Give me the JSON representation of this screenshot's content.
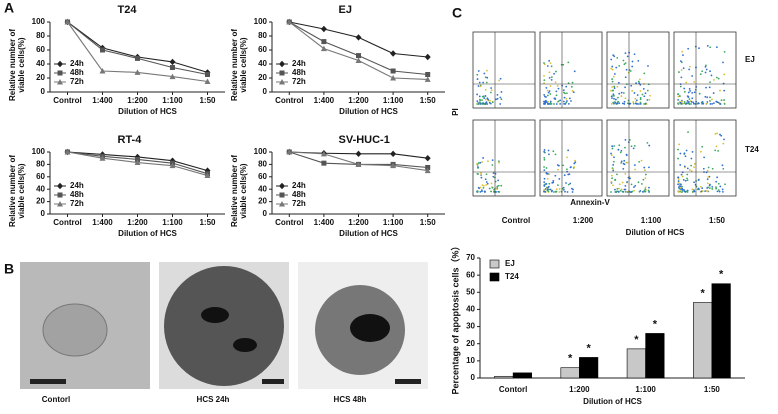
{
  "panels": [
    "A",
    "B",
    "C"
  ],
  "micrographs": {
    "labels": [
      "Contorl",
      "HCS 24h",
      "HCS 48h"
    ]
  },
  "flow": {
    "y_label": "PI",
    "x_label": "Annexin-V",
    "rows": [
      "EJ",
      "T24"
    ],
    "columns": [
      "Control",
      "1:200",
      "1:100",
      "1:50"
    ],
    "columns_title": "Dilution of HCS"
  },
  "chart_data": [
    {
      "type": "line",
      "title": "T24",
      "x_label": "Dilution of HCS",
      "y_label": "Relative number of viable cells(%)",
      "categories": [
        "Control",
        "1:400",
        "1:200",
        "1:100",
        "1:50"
      ],
      "ylim": [
        0,
        100
      ],
      "yticks": [
        0,
        20,
        40,
        60,
        80,
        100
      ],
      "series": [
        {
          "name": "24h",
          "color": "#222",
          "marker": "diamond",
          "values": [
            100,
            63,
            50,
            43,
            28
          ]
        },
        {
          "name": "48h",
          "color": "#555",
          "marker": "square",
          "values": [
            100,
            60,
            48,
            35,
            25
          ]
        },
        {
          "name": "72h",
          "color": "#777",
          "marker": "triangle",
          "values": [
            100,
            30,
            28,
            22,
            15
          ]
        }
      ]
    },
    {
      "type": "line",
      "title": "EJ",
      "x_label": "Dilution of HCS",
      "y_label": "Relative number of viable cells(%)",
      "categories": [
        "Control",
        "1:400",
        "1:200",
        "1:100",
        "1:50"
      ],
      "ylim": [
        0,
        100
      ],
      "yticks": [
        0,
        20,
        40,
        60,
        80,
        100
      ],
      "series": [
        {
          "name": "24h",
          "color": "#222",
          "marker": "diamond",
          "values": [
            100,
            90,
            78,
            55,
            50
          ]
        },
        {
          "name": "48h",
          "color": "#555",
          "marker": "square",
          "values": [
            100,
            72,
            52,
            30,
            25
          ]
        },
        {
          "name": "72h",
          "color": "#777",
          "marker": "triangle",
          "values": [
            100,
            62,
            45,
            20,
            18
          ]
        }
      ]
    },
    {
      "type": "line",
      "title": "RT-4",
      "x_label": "Dilution of HCS",
      "y_label": "Relative number of viable cells(%)",
      "categories": [
        "Control",
        "1:400",
        "1:200",
        "1:100",
        "1:50"
      ],
      "ylim": [
        0,
        100
      ],
      "yticks": [
        0,
        20,
        40,
        60,
        80,
        100
      ],
      "series": [
        {
          "name": "24h",
          "color": "#222",
          "marker": "diamond",
          "values": [
            100,
            96,
            92,
            86,
            70
          ]
        },
        {
          "name": "48h",
          "color": "#555",
          "marker": "square",
          "values": [
            100,
            93,
            88,
            82,
            65
          ]
        },
        {
          "name": "72h",
          "color": "#777",
          "marker": "triangle",
          "values": [
            100,
            90,
            83,
            78,
            62
          ]
        }
      ]
    },
    {
      "type": "line",
      "title": "SV-HUC-1",
      "x_label": "Dilution of HCS",
      "y_label": "Relative number of viable cells(%)",
      "categories": [
        "Control",
        "1:400",
        "1:200",
        "1:100",
        "1:50"
      ],
      "ylim": [
        0,
        100
      ],
      "yticks": [
        0,
        20,
        40,
        60,
        80,
        100
      ],
      "series": [
        {
          "name": "24h",
          "color": "#222",
          "marker": "diamond",
          "values": [
            100,
            98,
            97,
            97,
            90
          ]
        },
        {
          "name": "48h",
          "color": "#555",
          "marker": "square",
          "values": [
            100,
            82,
            80,
            80,
            75
          ]
        },
        {
          "name": "72h",
          "color": "#777",
          "marker": "triangle",
          "values": [
            100,
            97,
            80,
            78,
            70
          ]
        }
      ]
    },
    {
      "type": "bar",
      "x_label": "Dilution of HCS",
      "y_label": "Percentage of apoptosis cells（%）",
      "categories": [
        "Contorl",
        "1:200",
        "1:100",
        "1:50"
      ],
      "ylim": [
        0,
        70
      ],
      "yticks": [
        0,
        10,
        20,
        30,
        40,
        50,
        60,
        70
      ],
      "series": [
        {
          "name": "EJ",
          "color": "#c8c8c8",
          "values": [
            1,
            6,
            17,
            44
          ],
          "annotations": [
            null,
            "*",
            "*",
            "*"
          ]
        },
        {
          "name": "T24",
          "color": "#000000",
          "values": [
            3,
            12,
            26,
            55
          ],
          "annotations": [
            null,
            "*",
            "*",
            "*"
          ]
        }
      ]
    }
  ]
}
